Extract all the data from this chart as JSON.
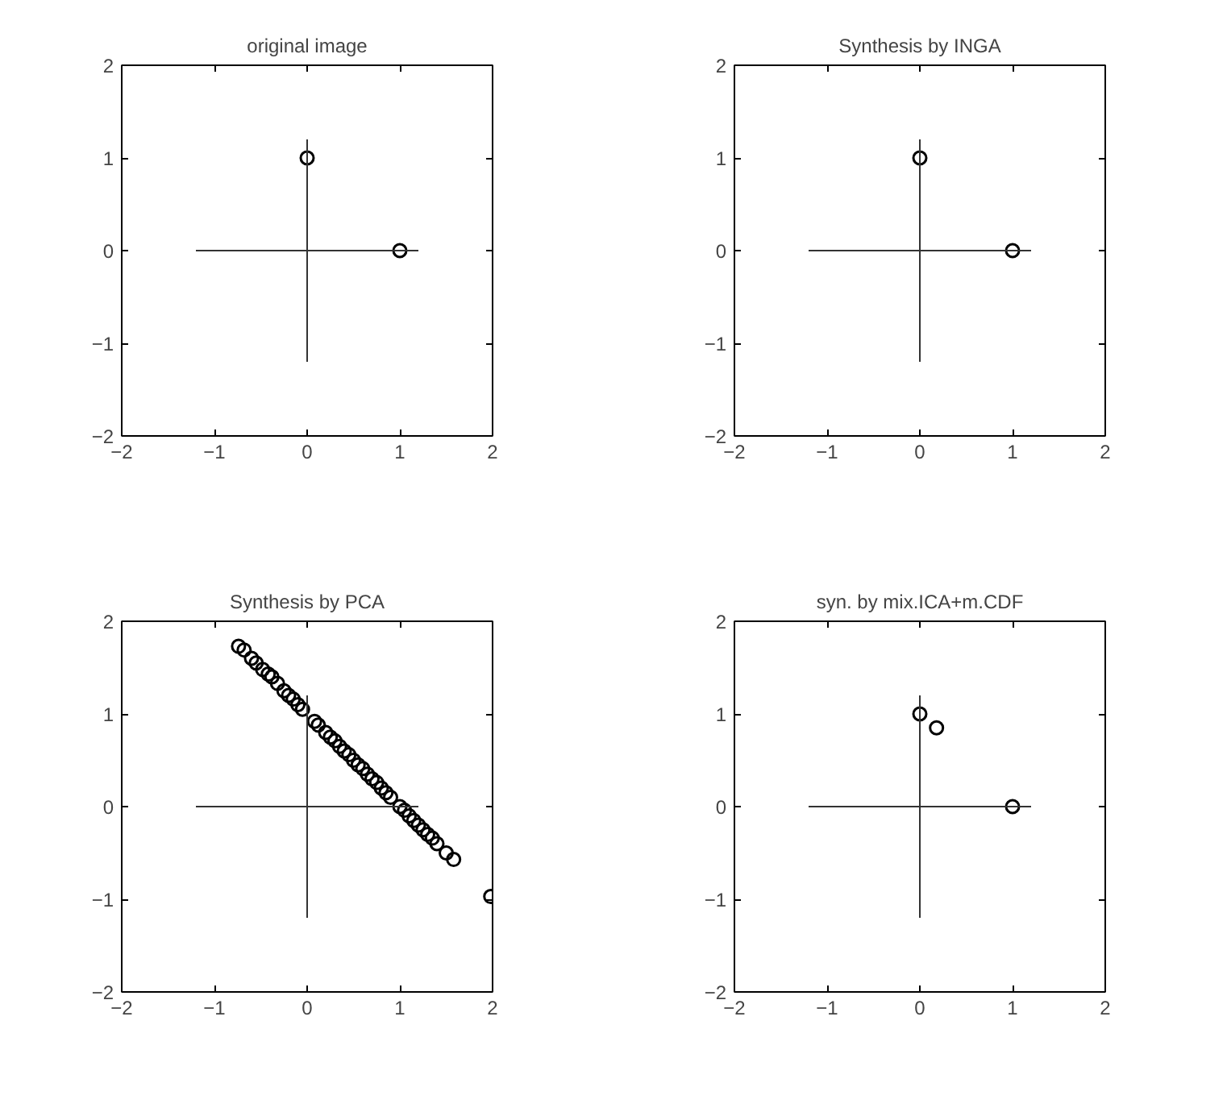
{
  "chart_data": [
    {
      "type": "scatter",
      "title": "original image",
      "grid": false,
      "xlim": [
        -2,
        2
      ],
      "ylim": [
        -2,
        2
      ],
      "xticks": [
        -2,
        -1,
        0,
        1,
        2
      ],
      "yticks": [
        -2,
        -1,
        0,
        1,
        2
      ],
      "series": [
        {
          "color": "#000000",
          "marker": "circle",
          "x": [
            0,
            1
          ],
          "values": [
            1,
            0
          ]
        },
        {
          "type": "line",
          "marker": "none",
          "color": "#333333",
          "x": [
            -1.2,
            1.2
          ],
          "values": [
            0,
            0
          ]
        },
        {
          "type": "line",
          "marker": "none",
          "color": "#333333",
          "x": [
            0,
            0
          ],
          "values": [
            -1.2,
            1.2
          ]
        }
      ]
    },
    {
      "type": "scatter",
      "title": "Synthesis by INGA",
      "grid": false,
      "xlim": [
        -2,
        2
      ],
      "ylim": [
        -2,
        2
      ],
      "xticks": [
        -2,
        -1,
        0,
        1,
        2
      ],
      "yticks": [
        -2,
        -1,
        0,
        1,
        2
      ],
      "series": [
        {
          "color": "#000000",
          "marker": "circle",
          "x": [
            0,
            1
          ],
          "values": [
            1,
            0
          ]
        },
        {
          "type": "line",
          "marker": "none",
          "color": "#333333",
          "x": [
            -1.2,
            1.2
          ],
          "values": [
            0,
            0
          ]
        },
        {
          "type": "line",
          "marker": "none",
          "color": "#333333",
          "x": [
            0,
            0
          ],
          "values": [
            -1.2,
            1.2
          ]
        }
      ]
    },
    {
      "type": "scatter",
      "title": "Synthesis by PCA",
      "grid": false,
      "xlim": [
        -2,
        2
      ],
      "ylim": [
        -2,
        2
      ],
      "xticks": [
        -2,
        -1,
        0,
        1,
        2
      ],
      "yticks": [
        -2,
        -1,
        0,
        1,
        2
      ],
      "series": [
        {
          "color": "#000000",
          "marker": "circle",
          "x": [
            -0.74,
            -0.68,
            -0.6,
            -0.55,
            -0.48,
            -0.42,
            -0.38,
            -0.32,
            -0.25,
            -0.2,
            -0.15,
            -0.1,
            -0.05,
            0.08,
            0.12,
            0.2,
            0.25,
            0.3,
            0.35,
            0.4,
            0.45,
            0.5,
            0.55,
            0.6,
            0.65,
            0.7,
            0.75,
            0.8,
            0.85,
            0.9,
            1.0,
            1.05,
            1.1,
            1.15,
            1.2,
            1.25,
            1.3,
            1.35,
            1.4,
            1.5,
            1.58,
            1.98
          ],
          "values": [
            1.73,
            1.69,
            1.6,
            1.55,
            1.48,
            1.43,
            1.4,
            1.33,
            1.25,
            1.2,
            1.16,
            1.1,
            1.05,
            0.92,
            0.88,
            0.8,
            0.75,
            0.71,
            0.65,
            0.6,
            0.56,
            0.5,
            0.45,
            0.41,
            0.35,
            0.3,
            0.26,
            0.2,
            0.15,
            0.1,
            0.0,
            -0.04,
            -0.1,
            -0.15,
            -0.2,
            -0.25,
            -0.3,
            -0.34,
            -0.4,
            -0.5,
            -0.57,
            -0.97
          ]
        },
        {
          "type": "line",
          "marker": "none",
          "color": "#333333",
          "x": [
            -1.2,
            1.2
          ],
          "values": [
            0,
            0
          ]
        },
        {
          "type": "line",
          "marker": "none",
          "color": "#333333",
          "x": [
            0,
            0
          ],
          "values": [
            -1.2,
            1.2
          ]
        }
      ]
    },
    {
      "type": "scatter",
      "title": "syn. by mix.ICA+m.CDF",
      "grid": false,
      "xlim": [
        -2,
        2
      ],
      "ylim": [
        -2,
        2
      ],
      "xticks": [
        -2,
        -1,
        0,
        1,
        2
      ],
      "yticks": [
        -2,
        -1,
        0,
        1,
        2
      ],
      "series": [
        {
          "color": "#000000",
          "marker": "circle",
          "x": [
            0,
            0.18,
            1
          ],
          "values": [
            1,
            0.85,
            0
          ]
        },
        {
          "type": "line",
          "marker": "none",
          "color": "#333333",
          "x": [
            -1.2,
            1.2
          ],
          "values": [
            0,
            0
          ]
        },
        {
          "type": "line",
          "marker": "none",
          "color": "#333333",
          "x": [
            0,
            0
          ],
          "values": [
            -1.2,
            1.2
          ]
        }
      ]
    }
  ]
}
